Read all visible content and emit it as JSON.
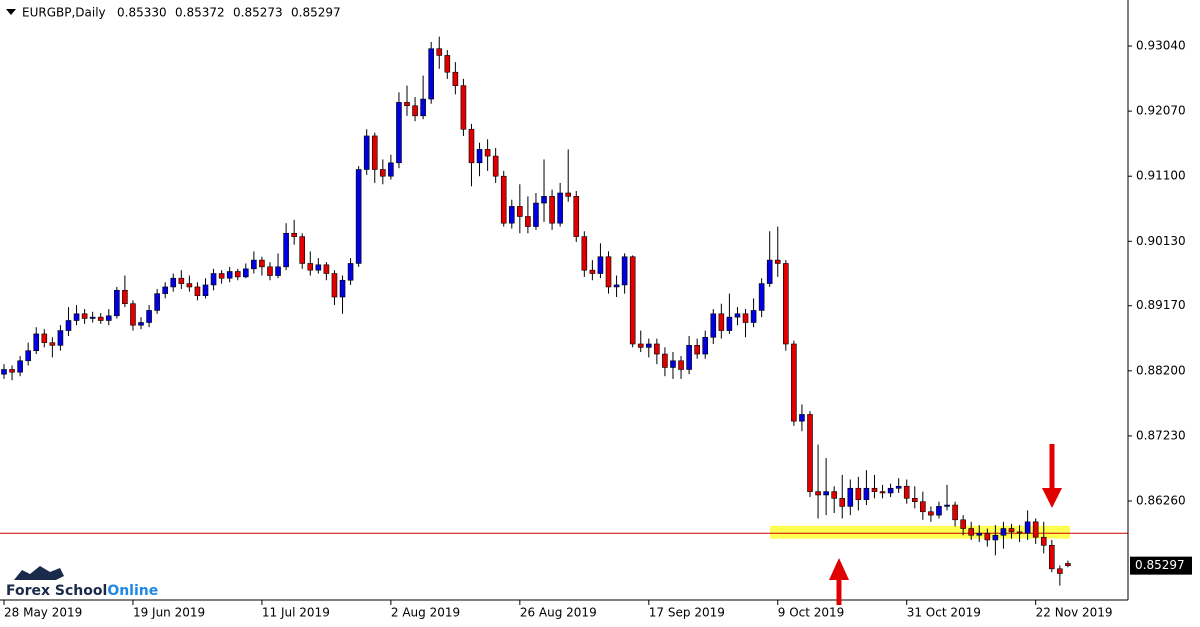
{
  "chart_data": {
    "type": "candlestick",
    "symbol": "EURGBP,Daily",
    "ohlc_labels": [
      "0.85330",
      "0.85372",
      "0.85273",
      "0.85297"
    ],
    "logo": [
      "Forex School",
      "Online"
    ],
    "categories": [
      "28 May 2019",
      null,
      null,
      null,
      null,
      null,
      null,
      null,
      null,
      null,
      null,
      null,
      null,
      null,
      null,
      null,
      "19 Jun 2019",
      null,
      null,
      null,
      null,
      null,
      null,
      null,
      null,
      null,
      null,
      null,
      null,
      null,
      null,
      null,
      "11 Jul 2019",
      null,
      null,
      null,
      null,
      null,
      null,
      null,
      null,
      null,
      null,
      null,
      null,
      null,
      null,
      null,
      "2 Aug 2019",
      null,
      null,
      null,
      null,
      null,
      null,
      null,
      null,
      null,
      null,
      null,
      null,
      null,
      null,
      null,
      "26 Aug 2019",
      null,
      null,
      null,
      null,
      null,
      null,
      null,
      null,
      null,
      null,
      null,
      null,
      null,
      null,
      null,
      "17 Sep 2019",
      null,
      null,
      null,
      null,
      null,
      null,
      null,
      null,
      null,
      null,
      null,
      null,
      null,
      null,
      null,
      "9 Oct 2019",
      null,
      null,
      null,
      null,
      null,
      null,
      null,
      null,
      null,
      null,
      null,
      null,
      null,
      null,
      null,
      "31 Oct 2019",
      null,
      null,
      null,
      null,
      null,
      null,
      null,
      null,
      null,
      null,
      null,
      null,
      null,
      null,
      null,
      "22 Nov 2019",
      null,
      null,
      null,
      null
    ],
    "open": [
      0.8815,
      0.8822,
      0.8818,
      0.8835,
      0.885,
      0.8875,
      0.8862,
      0.8858,
      0.888,
      0.8895,
      0.8905,
      0.8898,
      0.89,
      0.8895,
      0.8902,
      0.894,
      0.892,
      0.8888,
      0.8892,
      0.891,
      0.8935,
      0.8945,
      0.8958,
      0.895,
      0.8945,
      0.8932,
      0.8948,
      0.8965,
      0.8958,
      0.8968,
      0.896,
      0.8972,
      0.8985,
      0.8975,
      0.8962,
      0.8975,
      0.9025,
      0.902,
      0.898,
      0.897,
      0.8978,
      0.8965,
      0.893,
      0.8955,
      0.898,
      0.912,
      0.917,
      0.912,
      0.911,
      0.913,
      0.922,
      0.9215,
      0.92,
      0.9225,
      0.93,
      0.929,
      0.9265,
      0.9245,
      0.918,
      0.913,
      0.915,
      0.914,
      0.911,
      0.904,
      0.9065,
      0.905,
      0.9035,
      0.907,
      0.908,
      0.904,
      0.9085,
      0.908,
      0.902,
      0.897,
      0.8965,
      0.899,
      0.8945,
      0.8948,
      0.899,
      0.886,
      0.8855,
      0.886,
      0.8845,
      0.8825,
      0.8835,
      0.8822,
      0.8858,
      0.8845,
      0.887,
      0.8905,
      0.888,
      0.89,
      0.8905,
      0.8892,
      0.891,
      0.895,
      0.8985,
      0.898,
      0.886,
      0.8745,
      0.8755,
      0.864,
      0.8635,
      0.864,
      0.863,
      0.8618,
      0.8645,
      0.8628,
      0.8645,
      0.864,
      0.8638,
      0.8645,
      0.8648,
      0.863,
      0.8625,
      0.861,
      0.8605,
      0.8618,
      0.862,
      0.8598,
      0.8585,
      0.8575,
      0.8578,
      0.8568,
      0.8575,
      0.8585,
      0.858,
      0.8578,
      0.8595,
      0.8572,
      0.856,
      0.8525,
      0.8533
    ],
    "high": [
      0.883,
      0.8828,
      0.8842,
      0.8862,
      0.8885,
      0.8882,
      0.887,
      0.8888,
      0.8915,
      0.8918,
      0.8912,
      0.8908,
      0.8906,
      0.8912,
      0.8945,
      0.8962,
      0.8925,
      0.89,
      0.8918,
      0.8942,
      0.8952,
      0.8965,
      0.897,
      0.8962,
      0.8952,
      0.8958,
      0.8972,
      0.897,
      0.8975,
      0.8972,
      0.898,
      0.8998,
      0.899,
      0.8982,
      0.8995,
      0.904,
      0.9045,
      0.9025,
      0.8998,
      0.8988,
      0.8982,
      0.897,
      0.8962,
      0.8988,
      0.9125,
      0.918,
      0.9175,
      0.9135,
      0.9142,
      0.9235,
      0.9245,
      0.9228,
      0.926,
      0.931,
      0.9318,
      0.9298,
      0.928,
      0.9255,
      0.9188,
      0.916,
      0.9165,
      0.9152,
      0.9118,
      0.9075,
      0.9098,
      0.908,
      0.9085,
      0.9135,
      0.909,
      0.91,
      0.915,
      0.9088,
      0.9028,
      0.8985,
      0.901,
      0.8998,
      0.8962,
      0.8995,
      0.8992,
      0.888,
      0.8868,
      0.8868,
      0.8855,
      0.8848,
      0.8842,
      0.8872,
      0.8868,
      0.888,
      0.8912,
      0.892,
      0.8935,
      0.8915,
      0.8912,
      0.8928,
      0.8958,
      0.9028,
      0.9035,
      0.8985,
      0.8865,
      0.877,
      0.876,
      0.871,
      0.869,
      0.8648,
      0.8665,
      0.8658,
      0.8662,
      0.8672,
      0.8665,
      0.865,
      0.8652,
      0.866,
      0.8658,
      0.8648,
      0.864,
      0.8618,
      0.8625,
      0.865,
      0.8625,
      0.8605,
      0.8595,
      0.859,
      0.8585,
      0.859,
      0.8595,
      0.8592,
      0.859,
      0.8612,
      0.86,
      0.8595,
      0.8568,
      0.853,
      0.85372
    ],
    "low": [
      0.8808,
      0.8806,
      0.8812,
      0.8828,
      0.8845,
      0.8855,
      0.884,
      0.885,
      0.8872,
      0.8888,
      0.889,
      0.8892,
      0.889,
      0.8888,
      0.8898,
      0.8915,
      0.888,
      0.8882,
      0.8885,
      0.8905,
      0.8928,
      0.8938,
      0.8942,
      0.8938,
      0.8925,
      0.8928,
      0.894,
      0.895,
      0.8952,
      0.8955,
      0.8958,
      0.8965,
      0.8962,
      0.8955,
      0.8958,
      0.897,
      0.9008,
      0.8972,
      0.8962,
      0.8965,
      0.8955,
      0.8918,
      0.8905,
      0.8948,
      0.8975,
      0.9112,
      0.91,
      0.9098,
      0.9105,
      0.9122,
      0.92,
      0.9192,
      0.9195,
      0.9218,
      0.927,
      0.9255,
      0.9232,
      0.917,
      0.9095,
      0.911,
      0.9118,
      0.91,
      0.9035,
      0.9032,
      0.9025,
      0.9025,
      0.903,
      0.9042,
      0.903,
      0.9035,
      0.9072,
      0.9012,
      0.896,
      0.8955,
      0.8958,
      0.8935,
      0.893,
      0.8935,
      0.8855,
      0.8848,
      0.884,
      0.883,
      0.8812,
      0.8808,
      0.8808,
      0.8815,
      0.8838,
      0.8838,
      0.886,
      0.8868,
      0.8875,
      0.8888,
      0.887,
      0.8885,
      0.89,
      0.8945,
      0.896,
      0.885,
      0.8738,
      0.873,
      0.8632,
      0.86,
      0.8605,
      0.8608,
      0.86,
      0.8605,
      0.8612,
      0.862,
      0.863,
      0.863,
      0.8632,
      0.8638,
      0.8622,
      0.8615,
      0.8598,
      0.8595,
      0.86,
      0.8612,
      0.8588,
      0.8575,
      0.8568,
      0.8565,
      0.8558,
      0.8545,
      0.8555,
      0.857,
      0.8565,
      0.8568,
      0.8562,
      0.8548,
      0.852,
      0.85,
      0.85273
    ],
    "close": [
      0.8822,
      0.8818,
      0.8835,
      0.885,
      0.8875,
      0.8862,
      0.8858,
      0.888,
      0.8895,
      0.8905,
      0.8898,
      0.89,
      0.8895,
      0.8902,
      0.894,
      0.892,
      0.8888,
      0.8892,
      0.891,
      0.8935,
      0.8945,
      0.8958,
      0.895,
      0.8945,
      0.8932,
      0.8948,
      0.8965,
      0.8958,
      0.8968,
      0.896,
      0.8972,
      0.8985,
      0.8975,
      0.8962,
      0.8975,
      0.9025,
      0.902,
      0.898,
      0.897,
      0.8978,
      0.8965,
      0.893,
      0.8955,
      0.898,
      0.912,
      0.917,
      0.912,
      0.911,
      0.913,
      0.922,
      0.9215,
      0.92,
      0.9225,
      0.93,
      0.929,
      0.9265,
      0.9245,
      0.918,
      0.913,
      0.915,
      0.914,
      0.911,
      0.904,
      0.9065,
      0.905,
      0.9035,
      0.907,
      0.908,
      0.904,
      0.9085,
      0.908,
      0.902,
      0.897,
      0.8965,
      0.899,
      0.8945,
      0.8948,
      0.899,
      0.886,
      0.8855,
      0.886,
      0.8845,
      0.8825,
      0.8835,
      0.8822,
      0.8858,
      0.8845,
      0.887,
      0.8905,
      0.888,
      0.89,
      0.8905,
      0.8892,
      0.891,
      0.895,
      0.8985,
      0.898,
      0.886,
      0.8745,
      0.8755,
      0.864,
      0.8635,
      0.864,
      0.863,
      0.8618,
      0.8645,
      0.8628,
      0.8645,
      0.864,
      0.8638,
      0.8645,
      0.8648,
      0.863,
      0.8625,
      0.861,
      0.8605,
      0.8618,
      0.862,
      0.8598,
      0.8585,
      0.8575,
      0.8578,
      0.8568,
      0.8575,
      0.8585,
      0.858,
      0.8578,
      0.8595,
      0.8572,
      0.856,
      0.8525,
      0.8518,
      0.85297
    ],
    "up_color": "#0000e0",
    "down_color": "#e00000",
    "wick_color": "#000000",
    "ylim": [
      0.84785,
      0.93711
    ],
    "yticks": [
      {
        "value": 0.9304,
        "label": "0.93040"
      },
      {
        "value": 0.9207,
        "label": "0.92070"
      },
      {
        "value": 0.911,
        "label": "0.91100"
      },
      {
        "value": 0.9013,
        "label": "0.90130"
      },
      {
        "value": 0.8917,
        "label": "0.89170"
      },
      {
        "value": 0.882,
        "label": "0.88200"
      },
      {
        "value": 0.8723,
        "label": "0.87230"
      },
      {
        "value": 0.8626,
        "label": "0.86260"
      }
    ],
    "support_level": 0.8578,
    "support_color": "#cc0000",
    "support_zone": [
      0.857,
      0.8589
    ],
    "zone_color": "#ffff33"
  }
}
